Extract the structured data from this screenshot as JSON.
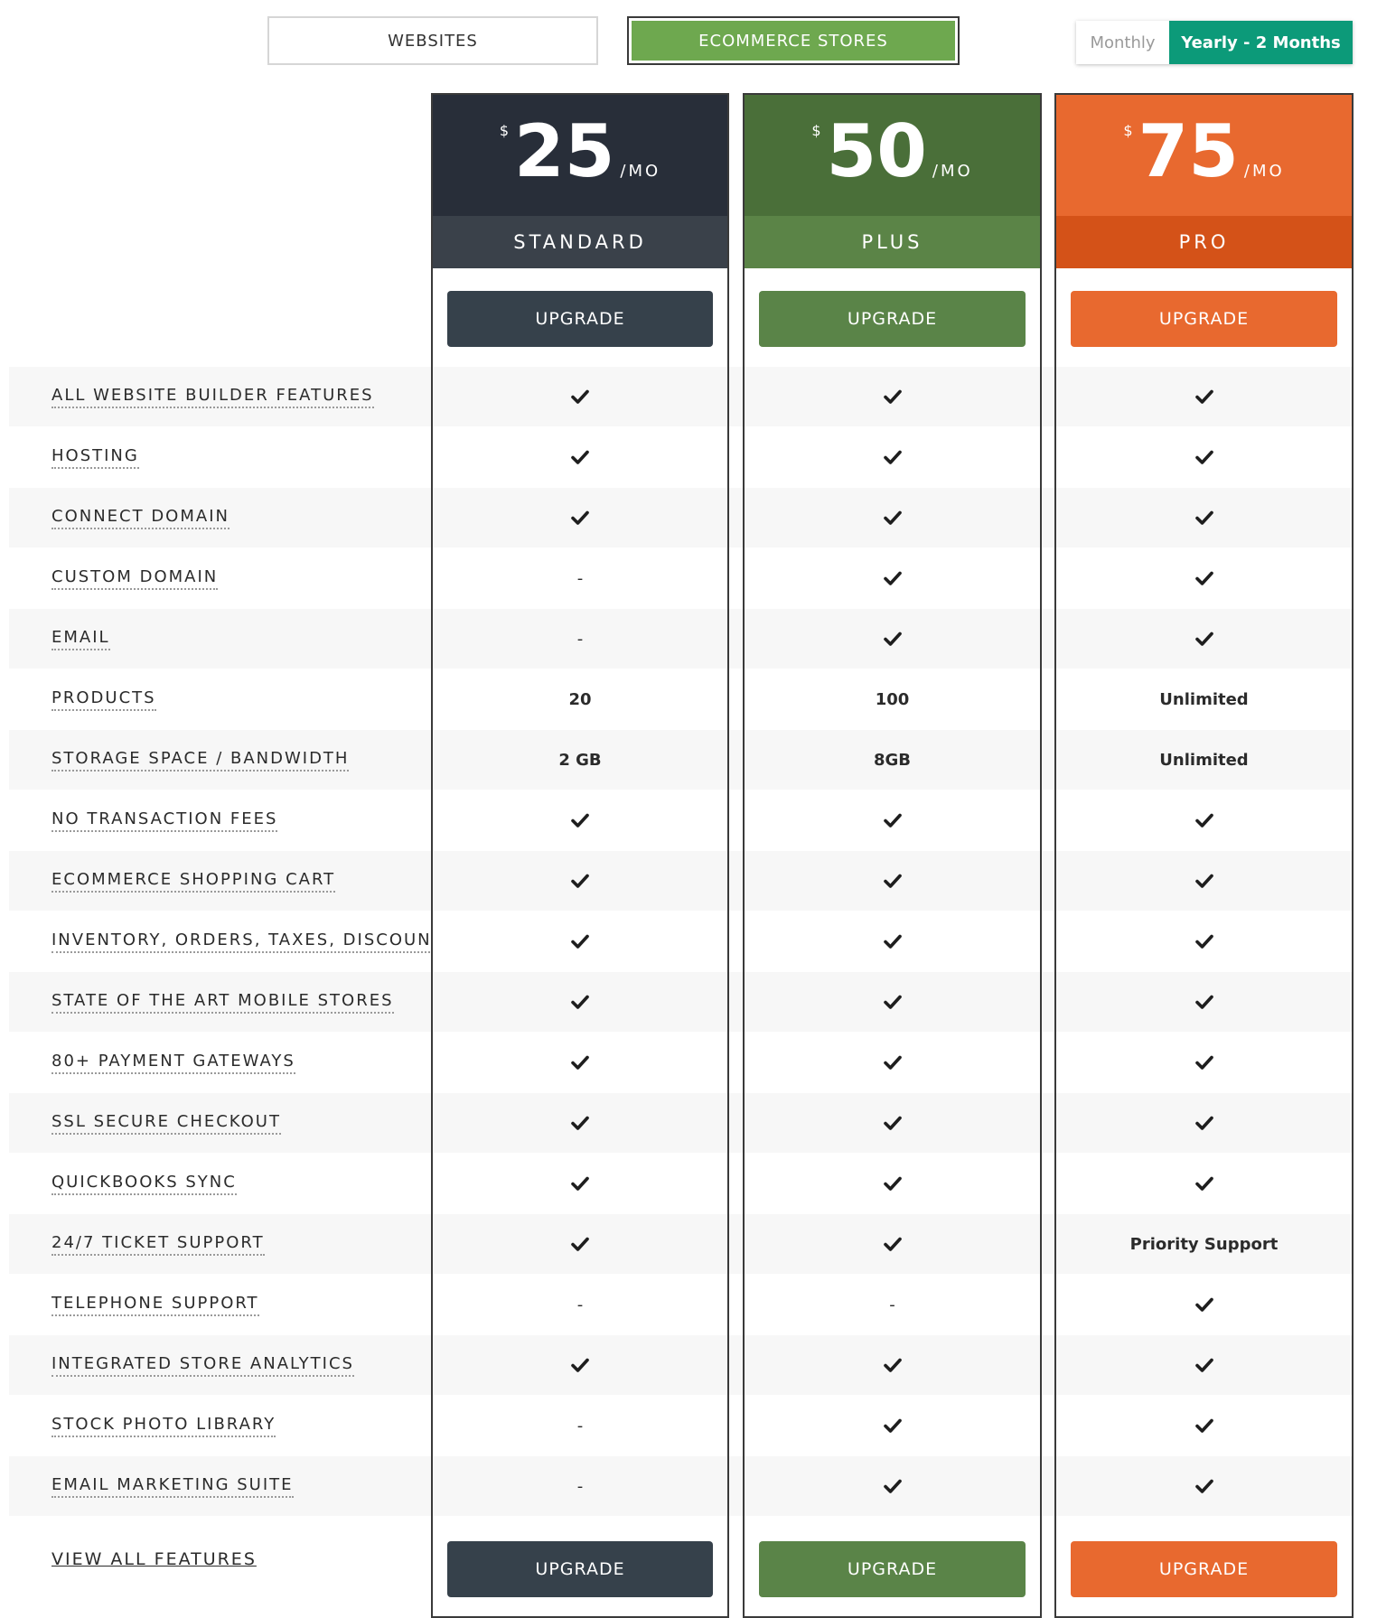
{
  "tabs": [
    {
      "label": "WEBSITES",
      "active": false
    },
    {
      "label": "ECOMMERCE STORES",
      "active": true
    }
  ],
  "billing": {
    "monthly_label": "Monthly",
    "yearly_label": "Yearly - 2 Months",
    "selected": "yearly"
  },
  "plans": [
    {
      "name": "STANDARD",
      "currency": "$",
      "amount": "25",
      "period": "/MO",
      "upgrade_top": "UPGRADE",
      "upgrade_bottom": "UPGRADE",
      "colors": {
        "head": "#282e39",
        "name_bar": "#3a414a",
        "button": "#36414b"
      }
    },
    {
      "name": "PLUS",
      "currency": "$",
      "amount": "50",
      "period": "/MO",
      "upgrade_top": "UPGRADE",
      "upgrade_bottom": "UPGRADE",
      "colors": {
        "head": "#4a6f39",
        "name_bar": "#5b8447",
        "button": "#5a8448"
      }
    },
    {
      "name": "PRO",
      "currency": "$",
      "amount": "75",
      "period": "/MO",
      "upgrade_top": "UPGRADE",
      "upgrade_bottom": "UPGRADE",
      "colors": {
        "head": "#e8692f",
        "name_bar": "#d45218",
        "button": "#e8692f"
      }
    }
  ],
  "features": [
    {
      "label": "ALL WEBSITE BUILDER FEATURES",
      "values": [
        "check",
        "check",
        "check"
      ]
    },
    {
      "label": "HOSTING",
      "values": [
        "check",
        "check",
        "check"
      ]
    },
    {
      "label": "CONNECT DOMAIN",
      "values": [
        "check",
        "check",
        "check"
      ]
    },
    {
      "label": "CUSTOM DOMAIN",
      "values": [
        "-",
        "check",
        "check"
      ]
    },
    {
      "label": "EMAIL",
      "values": [
        "-",
        "check",
        "check"
      ]
    },
    {
      "label": "PRODUCTS",
      "values": [
        "20",
        "100",
        "Unlimited"
      ]
    },
    {
      "label": "STORAGE SPACE / BANDWIDTH",
      "values": [
        "2 GB",
        "8GB",
        "Unlimited"
      ]
    },
    {
      "label": "NO TRANSACTION FEES",
      "values": [
        "check",
        "check",
        "check"
      ]
    },
    {
      "label": "ECOMMERCE SHOPPING CART",
      "values": [
        "check",
        "check",
        "check"
      ]
    },
    {
      "label": "INVENTORY, ORDERS, TAXES, DISCOUNTS",
      "values": [
        "check",
        "check",
        "check"
      ]
    },
    {
      "label": "STATE OF THE ART MOBILE STORES",
      "values": [
        "check",
        "check",
        "check"
      ]
    },
    {
      "label": "80+ PAYMENT GATEWAYS",
      "values": [
        "check",
        "check",
        "check"
      ]
    },
    {
      "label": "SSL SECURE CHECKOUT",
      "values": [
        "check",
        "check",
        "check"
      ]
    },
    {
      "label": "QUICKBOOKS SYNC",
      "values": [
        "check",
        "check",
        "check"
      ]
    },
    {
      "label": "24/7 TICKET SUPPORT",
      "values": [
        "check",
        "check",
        "Priority Support"
      ]
    },
    {
      "label": "TELEPHONE SUPPORT",
      "values": [
        "-",
        "-",
        "check"
      ]
    },
    {
      "label": "INTEGRATED STORE ANALYTICS",
      "values": [
        "check",
        "check",
        "check"
      ]
    },
    {
      "label": "STOCK PHOTO LIBRARY",
      "values": [
        "-",
        "check",
        "check"
      ]
    },
    {
      "label": "EMAIL MARKETING SUITE",
      "values": [
        "-",
        "check",
        "check"
      ]
    }
  ],
  "view_all_label": "VIEW ALL FEATURES"
}
